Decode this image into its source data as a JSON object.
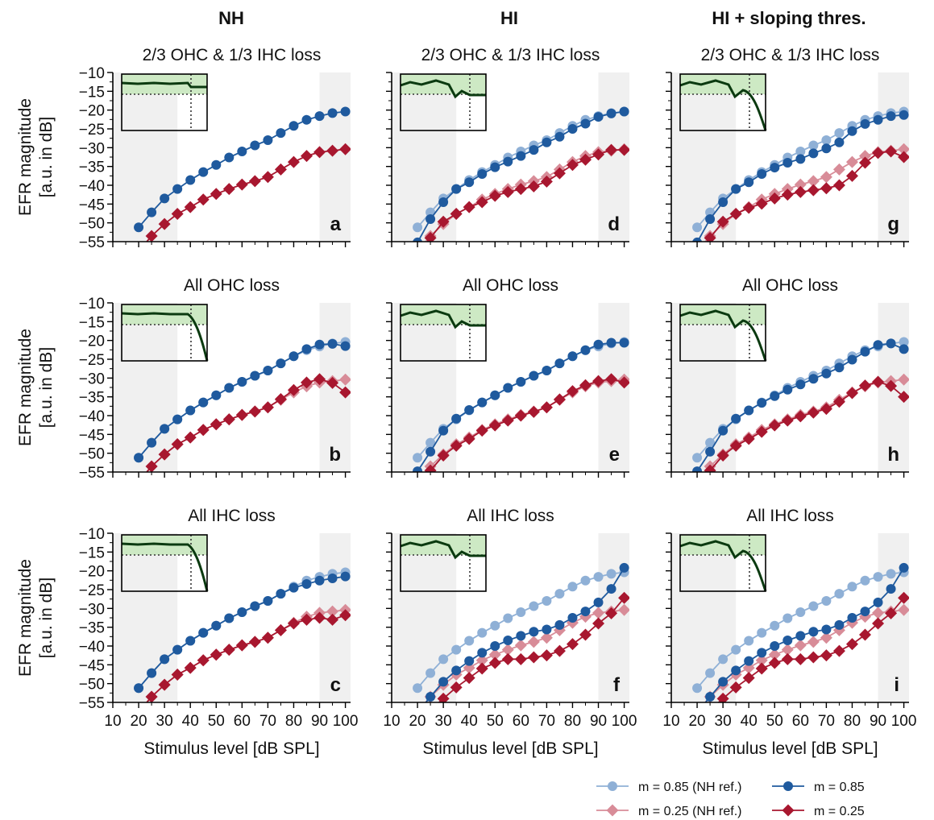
{
  "figure": {
    "column_titles": [
      "NH",
      "HI",
      "HI + sloping thres."
    ],
    "row_titles": [
      "2/3 OHC & 1/3 IHC loss",
      "All OHC loss",
      "All IHC loss"
    ],
    "y_axis_label_line1": "EFR magnitude",
    "y_axis_label_line2": "[a.u. in dB]",
    "x_axis_label": "Stimulus level [dB SPL]",
    "colors": {
      "m085": "#1f5a9e",
      "m085_ref": "#8fb0d6",
      "m025": "#a8172f",
      "m025_ref": "#d88c98",
      "shade": "#f0f0f0",
      "inset_fill": "#cde9c4",
      "inset_line": "#0b3a10"
    },
    "legend": [
      {
        "key": "m085_ref",
        "label": "m = 0.85 (NH ref.)",
        "marker": "circle"
      },
      {
        "key": "m025_ref",
        "label": "m = 0.25 (NH ref.)",
        "marker": "diamond"
      },
      {
        "key": "m085",
        "label": "m = 0.85",
        "marker": "circle"
      },
      {
        "key": "m025",
        "label": "m = 0.25",
        "marker": "diamond"
      }
    ]
  },
  "chart_data": {
    "type": "line",
    "xlim": [
      10,
      102
    ],
    "ylim": [
      -55,
      -10
    ],
    "xticks": [
      10,
      20,
      30,
      40,
      50,
      60,
      70,
      80,
      90,
      100
    ],
    "yticks": [
      -10,
      -15,
      -20,
      -25,
      -30,
      -35,
      -40,
      -45,
      -50,
      -55
    ],
    "shaded_regions": [
      [
        10,
        35
      ],
      [
        90,
        102
      ]
    ],
    "x": [
      20,
      25,
      30,
      35,
      40,
      45,
      50,
      55,
      60,
      65,
      70,
      75,
      80,
      85,
      90,
      95,
      100
    ],
    "reference": {
      "m085": [
        -51.2,
        -47.2,
        -43.5,
        -41.0,
        -38.6,
        -36.5,
        -34.6,
        -32.6,
        -31.0,
        -29.4,
        -28.0,
        -26.1,
        -24.2,
        -22.6,
        -21.6,
        -20.8,
        -20.4
      ],
      "m025": [
        -57.5,
        -53.5,
        -50.3,
        -47.6,
        -45.8,
        -43.8,
        -42.3,
        -41.0,
        -39.8,
        -38.9,
        -37.8,
        -35.8,
        -33.8,
        -32.2,
        -31.2,
        -30.8,
        -30.4
      ]
    },
    "panels": [
      {
        "letter": "a",
        "row": 0,
        "col": 0,
        "inset": "flat",
        "show_ref": false,
        "m085": [
          -51.2,
          -47.2,
          -43.5,
          -41.0,
          -38.6,
          -36.5,
          -34.6,
          -32.6,
          -31.0,
          -29.4,
          -28.0,
          -26.1,
          -24.2,
          -22.6,
          -21.6,
          -20.8,
          -20.4
        ],
        "m025": [
          -57.5,
          -53.5,
          -50.3,
          -47.6,
          -45.8,
          -43.8,
          -42.3,
          -41.0,
          -39.8,
          -38.9,
          -37.8,
          -35.8,
          -33.8,
          -32.2,
          -31.2,
          -30.8,
          -30.4
        ]
      },
      {
        "letter": "b",
        "row": 1,
        "col": 0,
        "inset": "flat_drop",
        "show_ref": true,
        "m085": [
          -51.2,
          -47.2,
          -43.5,
          -41.0,
          -38.6,
          -36.5,
          -34.6,
          -32.6,
          -31.0,
          -29.4,
          -28.0,
          -26.1,
          -24.2,
          -22.3,
          -21.1,
          -20.9,
          -21.5
        ],
        "m025": [
          -57.5,
          -53.5,
          -50.3,
          -47.6,
          -45.8,
          -43.8,
          -42.3,
          -41.0,
          -39.8,
          -38.9,
          -37.8,
          -35.6,
          -33.2,
          -31.2,
          -30.3,
          -31.3,
          -33.8
        ]
      },
      {
        "letter": "c",
        "row": 2,
        "col": 0,
        "inset": "flat_drop",
        "show_ref": true,
        "m085": [
          -51.2,
          -47.2,
          -43.5,
          -41.0,
          -38.6,
          -36.5,
          -34.6,
          -32.6,
          -31.0,
          -29.4,
          -28.0,
          -26.1,
          -24.5,
          -23.5,
          -22.6,
          -22.0,
          -21.5
        ],
        "m025": [
          -57.5,
          -53.5,
          -50.3,
          -47.6,
          -45.8,
          -43.8,
          -42.3,
          -41.0,
          -39.8,
          -38.9,
          -37.8,
          -35.8,
          -34.0,
          -33.0,
          -32.5,
          -33.0,
          -31.8
        ]
      },
      {
        "letter": "d",
        "row": 0,
        "col": 1,
        "inset": "hi_flat",
        "show_ref": true,
        "m085": [
          -55.2,
          -49.0,
          -44.5,
          -41.0,
          -39.2,
          -37.0,
          -35.2,
          -33.7,
          -32.2,
          -30.6,
          -28.6,
          -27.1,
          -25.0,
          -23.6,
          -21.8,
          -20.9,
          -20.4
        ],
        "m025": [
          -58.5,
          -54.0,
          -49.7,
          -47.6,
          -45.8,
          -44.5,
          -42.8,
          -41.8,
          -41.0,
          -40.3,
          -39.0,
          -36.8,
          -34.6,
          -33.2,
          -31.8,
          -30.6,
          -30.6
        ]
      },
      {
        "letter": "e",
        "row": 1,
        "col": 1,
        "inset": "hi_flat",
        "show_ref": true,
        "m085": [
          -54.8,
          -49.6,
          -44.0,
          -40.8,
          -38.5,
          -36.5,
          -34.6,
          -32.6,
          -31.0,
          -29.4,
          -28.0,
          -26.1,
          -24.2,
          -22.6,
          -21.1,
          -20.6,
          -20.6
        ],
        "m025": [
          -58.5,
          -54.6,
          -50.6,
          -48.0,
          -46.2,
          -44.0,
          -42.6,
          -41.3,
          -40.0,
          -39.0,
          -37.8,
          -35.7,
          -33.5,
          -31.9,
          -30.8,
          -30.3,
          -31.2
        ]
      },
      {
        "letter": "f",
        "row": 2,
        "col": 1,
        "inset": "hi_flat",
        "show_ref": true,
        "m085": [
          -57.8,
          -53.5,
          -49.5,
          -46.5,
          -44.0,
          -41.8,
          -40.0,
          -38.5,
          -37.3,
          -36.2,
          -35.6,
          -34.4,
          -32.5,
          -30.8,
          -28.4,
          -24.8,
          -19.2
        ],
        "m025": [
          -60.0,
          -57.0,
          -54.0,
          -51.0,
          -48.5,
          -46.0,
          -44.5,
          -43.5,
          -43.5,
          -43.0,
          -42.5,
          -41.3,
          -39.5,
          -37.0,
          -34.0,
          -31.3,
          -27.2
        ]
      },
      {
        "letter": "g",
        "row": 0,
        "col": 2,
        "inset": "hi_drop",
        "show_ref": true,
        "m085": [
          -55.2,
          -49.0,
          -44.5,
          -41.0,
          -39.2,
          -37.0,
          -35.3,
          -34.0,
          -33.0,
          -31.5,
          -30.2,
          -28.6,
          -25.6,
          -23.7,
          -22.6,
          -21.6,
          -21.3
        ],
        "m025": [
          -58.5,
          -54.0,
          -49.7,
          -47.6,
          -46.0,
          -44.9,
          -43.5,
          -42.5,
          -41.8,
          -41.3,
          -40.8,
          -40.0,
          -37.5,
          -34.0,
          -31.4,
          -31.0,
          -32.5
        ]
      },
      {
        "letter": "h",
        "row": 1,
        "col": 2,
        "inset": "hi_drop",
        "show_ref": true,
        "m085": [
          -54.8,
          -49.6,
          -44.0,
          -40.8,
          -38.6,
          -36.6,
          -34.8,
          -33.1,
          -31.7,
          -30.2,
          -28.8,
          -27.2,
          -25.1,
          -23.0,
          -21.2,
          -20.8,
          -22.3
        ],
        "m025": [
          -58.5,
          -54.6,
          -50.6,
          -48.0,
          -46.2,
          -44.3,
          -42.6,
          -41.3,
          -40.2,
          -39.2,
          -38.2,
          -36.3,
          -34.0,
          -32.0,
          -31.0,
          -32.1,
          -35.0
        ]
      },
      {
        "letter": "i",
        "row": 2,
        "col": 2,
        "inset": "hi_drop",
        "show_ref": true,
        "m085": [
          -57.8,
          -53.5,
          -49.5,
          -46.5,
          -44.0,
          -41.8,
          -40.0,
          -38.5,
          -37.3,
          -36.2,
          -35.6,
          -34.4,
          -32.5,
          -30.8,
          -28.4,
          -24.8,
          -19.2
        ],
        "m025": [
          -60.0,
          -57.0,
          -54.0,
          -51.0,
          -48.5,
          -46.0,
          -44.5,
          -43.5,
          -43.5,
          -43.0,
          -42.5,
          -41.3,
          -39.5,
          -37.0,
          -34.0,
          -31.3,
          -27.2
        ]
      }
    ]
  }
}
